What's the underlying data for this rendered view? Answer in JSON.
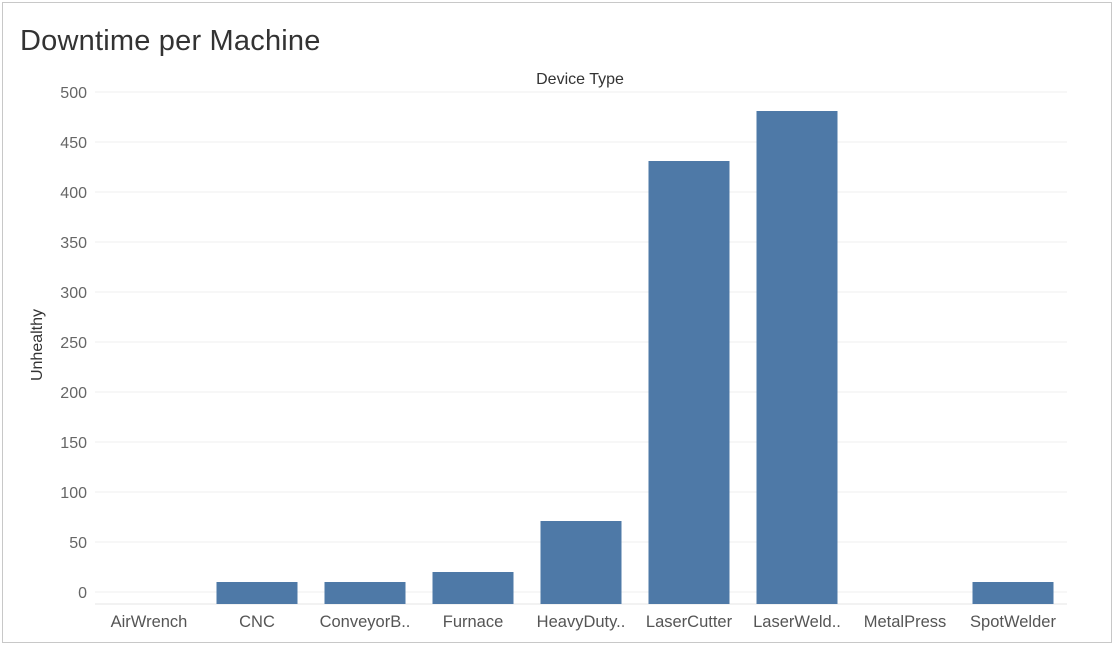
{
  "chart_data": {
    "type": "bar",
    "title": "Downtime per Machine",
    "xlabel": "Device Type",
    "ylabel": "Unhealthy",
    "categories": [
      "AirWrench",
      "CNC",
      "ConveyorB..",
      "Furnace",
      "HeavyDuty..",
      "LaserCutter",
      "LaserWeld..",
      "MetalPress",
      "SpotWelder"
    ],
    "values": [
      0,
      10,
      10,
      20,
      71,
      431,
      481,
      0,
      10
    ],
    "ylim": [
      -12,
      500
    ],
    "yticks": [
      0,
      50,
      100,
      150,
      200,
      250,
      300,
      350,
      400,
      450,
      500
    ],
    "grid": true,
    "bar_color": "#4e79a7"
  }
}
